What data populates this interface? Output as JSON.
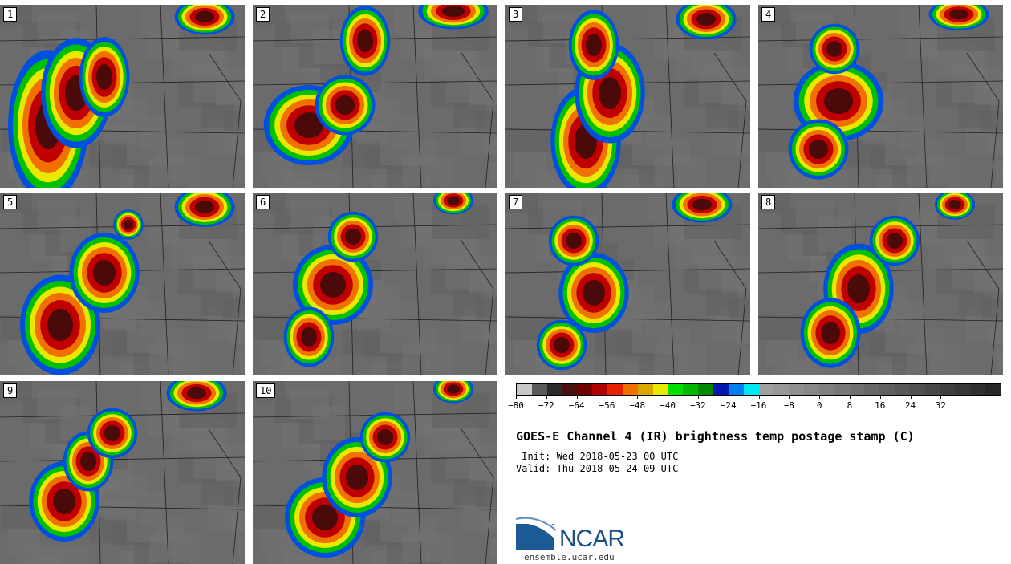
{
  "panels": [
    {
      "label": "1"
    },
    {
      "label": "2"
    },
    {
      "label": "3"
    },
    {
      "label": "4"
    },
    {
      "label": "5"
    },
    {
      "label": "6"
    },
    {
      "label": "7"
    },
    {
      "label": "8"
    },
    {
      "label": "9"
    },
    {
      "label": "10"
    }
  ],
  "colorbar": {
    "colors": [
      "#c8c8c8",
      "#5a5a5a",
      "#2a2a2a",
      "#4a1010",
      "#6e0000",
      "#b00000",
      "#e82000",
      "#f07000",
      "#d8a800",
      "#e8e800",
      "#00e000",
      "#00b800",
      "#008800",
      "#0018b0",
      "#0080f0",
      "#00e8f0",
      "#a0a0a0",
      "#989898",
      "#909090",
      "#888888",
      "#808080",
      "#787878",
      "#707070",
      "#686868",
      "#606060",
      "#585858",
      "#505050",
      "#484848",
      "#404040",
      "#383838",
      "#303030",
      "#282828"
    ],
    "tick_labels": [
      "−80",
      "−72",
      "−64",
      "−56",
      "−48",
      "−40",
      "−32",
      "−24",
      "−16",
      "−8",
      "0",
      "8",
      "16",
      "24",
      "32"
    ],
    "min": -80,
    "max": 48
  },
  "title": "GOES-E Channel 4 (IR) brightness temp postage stamp (C)",
  "init": " Init: Wed 2018-05-23 00 UTC",
  "valid": "Valid: Thu 2018-05-24 09 UTC",
  "logo": {
    "text": "NCAR",
    "url": "ensemble.ucar.edu"
  }
}
